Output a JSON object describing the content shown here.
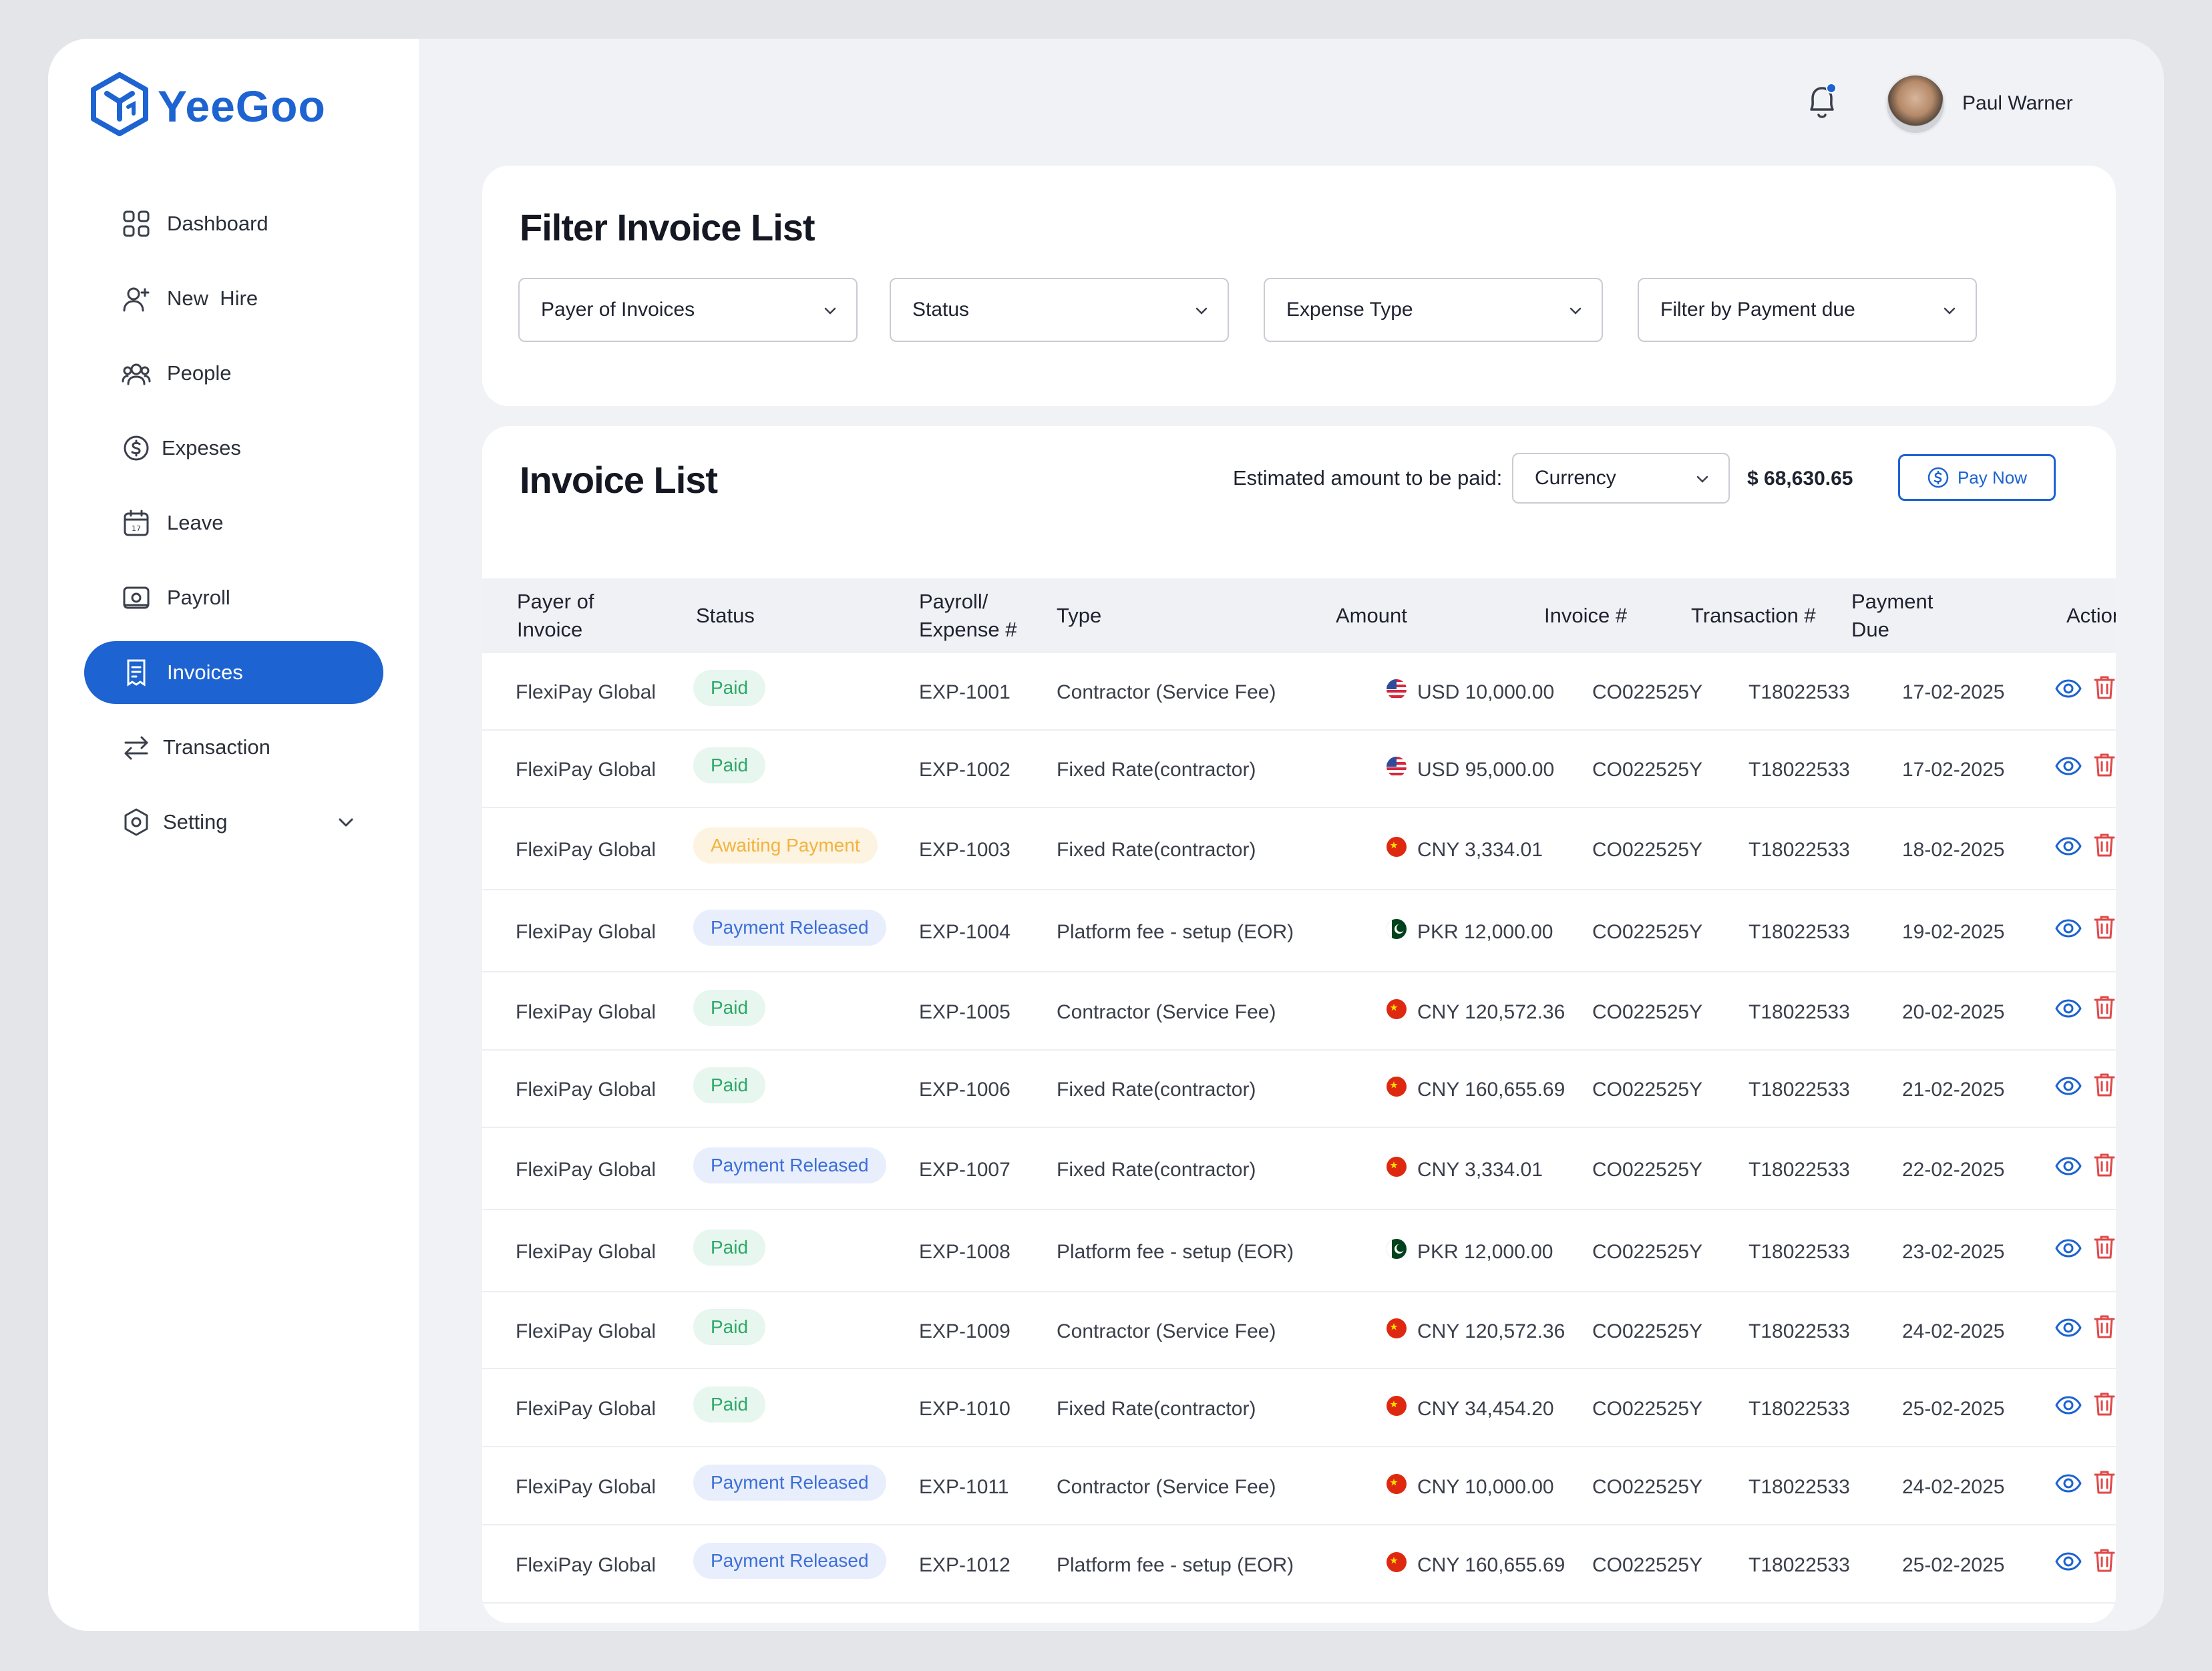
{
  "app": {
    "logo_text": "YeeGoo"
  },
  "colors": {
    "brand": "#1d63d1",
    "paid": "#2ea869",
    "awaiting": "#f2b33d",
    "released": "#3c6fd8",
    "delete": "#e0484a"
  },
  "sidebar": {
    "items": [
      {
        "label": "Dashboard",
        "icon": "grid-icon"
      },
      {
        "label": "New  Hire",
        "icon": "user-plus-icon"
      },
      {
        "label": "People",
        "icon": "people-icon"
      },
      {
        "label": "Expeses",
        "icon": "dollar-circle-icon"
      },
      {
        "label": "Leave",
        "icon": "calendar-icon"
      },
      {
        "label": "Payroll",
        "icon": "payroll-icon"
      },
      {
        "label": "Invoices",
        "icon": "invoice-icon",
        "active": true
      },
      {
        "label": "Transaction",
        "icon": "transfer-icon"
      },
      {
        "label": "Setting",
        "icon": "settings-icon",
        "has_chevron": true
      }
    ]
  },
  "header": {
    "user_name": "Paul Warner",
    "notification_dot": true
  },
  "filters": {
    "title": "Filter Invoice List",
    "selects": [
      "Payer of Invoices",
      "Status",
      "Expense Type",
      "Filter by Payment due"
    ]
  },
  "invoice_list": {
    "title": "Invoice List",
    "estimate_label": "Estimated amount to be paid:",
    "currency_select": "Currency",
    "estimate_amount": "$ 68,630.65",
    "pay_button": "Pay Now",
    "columns": {
      "payer": [
        "Payer of",
        "Invoice"
      ],
      "status": "Status",
      "payroll": [
        "Payroll/",
        "Expense #"
      ],
      "type": "Type",
      "amount": "Amount",
      "invoice": "Invoice #",
      "transaction": "Transaction #",
      "due": [
        "Payment",
        "Due"
      ],
      "action": "Action"
    },
    "rows": [
      {
        "payer": "FlexiPay Global",
        "status": "Paid",
        "status_kind": "paid",
        "expense": "EXP-1001",
        "type": "Contractor (Service Fee)",
        "flag": "us",
        "amount": "USD 10,000.00",
        "invoice": "CO022525Y",
        "transaction": "T18022533",
        "due": "17-02-2025"
      },
      {
        "payer": "FlexiPay Global",
        "status": "Paid",
        "status_kind": "paid",
        "expense": "EXP-1002",
        "type": "Fixed Rate(contractor)",
        "flag": "us",
        "amount": "USD 95,000.00",
        "invoice": "CO022525Y",
        "transaction": "T18022533",
        "due": "17-02-2025"
      },
      {
        "payer": "FlexiPay Global",
        "status": "Awaiting Payment",
        "status_kind": "await",
        "expense": "EXP-1003",
        "type": "Fixed Rate(contractor)",
        "flag": "cn",
        "amount": "CNY 3,334.01",
        "invoice": "CO022525Y",
        "transaction": "T18022533",
        "due": "18-02-2025"
      },
      {
        "payer": "FlexiPay Global",
        "status": "Payment Released",
        "status_kind": "released",
        "expense": "EXP-1004",
        "type": "Platform fee - setup (EOR)",
        "flag": "pk",
        "amount": "PKR 12,000.00",
        "invoice": "CO022525Y",
        "transaction": "T18022533",
        "due": "19-02-2025"
      },
      {
        "payer": "FlexiPay Global",
        "status": "Paid",
        "status_kind": "paid",
        "expense": "EXP-1005",
        "type": "Contractor (Service Fee)",
        "flag": "cn",
        "amount": "CNY 120,572.36",
        "invoice": "CO022525Y",
        "transaction": "T18022533",
        "due": "20-02-2025"
      },
      {
        "payer": "FlexiPay Global",
        "status": "Paid",
        "status_kind": "paid",
        "expense": "EXP-1006",
        "type": "Fixed Rate(contractor)",
        "flag": "cn",
        "amount": "CNY 160,655.69",
        "invoice": "CO022525Y",
        "transaction": "T18022533",
        "due": "21-02-2025"
      },
      {
        "payer": "FlexiPay Global",
        "status": "Payment Released",
        "status_kind": "released",
        "expense": "EXP-1007",
        "type": "Fixed Rate(contractor)",
        "flag": "cn",
        "amount": "CNY 3,334.01",
        "invoice": "CO022525Y",
        "transaction": "T18022533",
        "due": "22-02-2025"
      },
      {
        "payer": "FlexiPay Global",
        "status": "Paid",
        "status_kind": "paid",
        "expense": "EXP-1008",
        "type": "Platform fee - setup (EOR)",
        "flag": "pk",
        "amount": "PKR 12,000.00",
        "invoice": "CO022525Y",
        "transaction": "T18022533",
        "due": "23-02-2025"
      },
      {
        "payer": "FlexiPay Global",
        "status": "Paid",
        "status_kind": "paid",
        "expense": "EXP-1009",
        "type": "Contractor (Service Fee)",
        "flag": "cn",
        "amount": "CNY 120,572.36",
        "invoice": "CO022525Y",
        "transaction": "T18022533",
        "due": "24-02-2025"
      },
      {
        "payer": "FlexiPay Global",
        "status": "Paid",
        "status_kind": "paid",
        "expense": "EXP-1010",
        "type": "Fixed Rate(contractor)",
        "flag": "cn",
        "amount": "CNY 34,454.20",
        "invoice": "CO022525Y",
        "transaction": "T18022533",
        "due": "25-02-2025"
      },
      {
        "payer": "FlexiPay Global",
        "status": "Payment Released",
        "status_kind": "released",
        "expense": "EXP-1011",
        "type": "Contractor (Service Fee)",
        "flag": "cn",
        "amount": "CNY 10,000.00",
        "invoice": "CO022525Y",
        "transaction": "T18022533",
        "due": "24-02-2025"
      },
      {
        "payer": "FlexiPay Global",
        "status": "Payment Released",
        "status_kind": "released",
        "expense": "EXP-1012",
        "type": "Platform fee - setup (EOR)",
        "flag": "cn",
        "amount": "CNY 160,655.69",
        "invoice": "CO022525Y",
        "transaction": "T18022533",
        "due": "25-02-2025"
      }
    ]
  }
}
